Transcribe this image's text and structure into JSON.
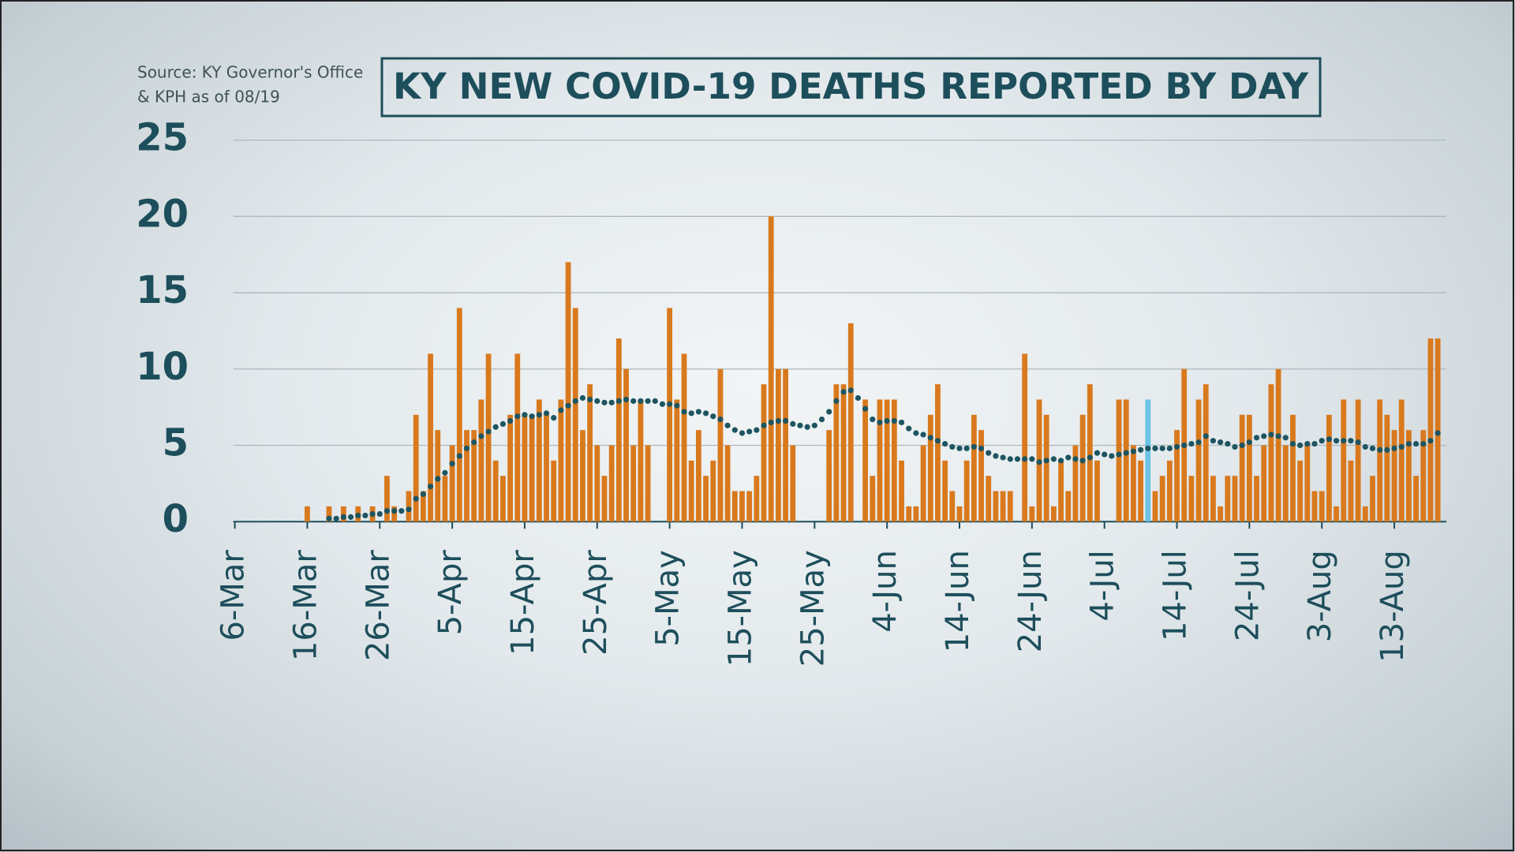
{
  "chart_data": {
    "type": "bar",
    "title": "KY NEW COVID-19 DEATHS REPORTED BY DAY",
    "source": [
      "Source: KY Governor's Office",
      "& KPH as of 08/19"
    ],
    "categories": [
      "6-Mar",
      null,
      null,
      null,
      null,
      null,
      null,
      null,
      null,
      null,
      "16-Mar",
      null,
      null,
      null,
      null,
      null,
      null,
      null,
      null,
      null,
      "26-Mar",
      null,
      null,
      null,
      null,
      null,
      null,
      null,
      null,
      null,
      "5-Apr",
      null,
      null,
      null,
      null,
      null,
      null,
      null,
      null,
      null,
      "15-Apr",
      null,
      null,
      null,
      null,
      null,
      null,
      null,
      null,
      null,
      "25-Apr",
      null,
      null,
      null,
      null,
      null,
      null,
      null,
      null,
      null,
      "5-May",
      null,
      null,
      null,
      null,
      null,
      null,
      null,
      null,
      null,
      "15-May",
      null,
      null,
      null,
      null,
      null,
      null,
      null,
      null,
      null,
      "25-May",
      null,
      null,
      null,
      null,
      null,
      null,
      null,
      null,
      null,
      "4-Jun",
      null,
      null,
      null,
      null,
      null,
      null,
      null,
      null,
      null,
      "14-Jun",
      null,
      null,
      null,
      null,
      null,
      null,
      null,
      null,
      null,
      "24-Jun",
      null,
      null,
      null,
      null,
      null,
      null,
      null,
      null,
      null,
      "4-Jul",
      null,
      null,
      null,
      null,
      null,
      null,
      null,
      null,
      null,
      "14-Jul",
      null,
      null,
      null,
      null,
      null,
      null,
      null,
      null,
      null,
      "24-Jul",
      null,
      null,
      null,
      null,
      null,
      null,
      null,
      null,
      null,
      "3-Aug",
      null,
      null,
      null,
      null,
      null,
      null,
      null,
      null,
      null,
      "13-Aug",
      null,
      null,
      null,
      null,
      null,
      null
    ],
    "series": [
      {
        "type": "bar",
        "color": "#d9791d",
        "highlight": {
          "index": 126,
          "color": "#6cc3e3"
        },
        "values": [
          0,
          0,
          0,
          0,
          0,
          0,
          0,
          0,
          0,
          0,
          1,
          0,
          0,
          1,
          0,
          1,
          0,
          1,
          0,
          1,
          0,
          3,
          1,
          0,
          2,
          7,
          2,
          11,
          6,
          3,
          5,
          14,
          6,
          6,
          8,
          11,
          4,
          3,
          7,
          11,
          7,
          7,
          8,
          7,
          4,
          8,
          17,
          14,
          6,
          9,
          5,
          3,
          5,
          12,
          10,
          5,
          8,
          5,
          0,
          0,
          14,
          8,
          11,
          4,
          6,
          3,
          4,
          10,
          5,
          2,
          2,
          2,
          3,
          9,
          20,
          10,
          10,
          5,
          0,
          0,
          0,
          0,
          6,
          9,
          9,
          13,
          0,
          8,
          3,
          8,
          8,
          8,
          4,
          1,
          1,
          5,
          7,
          9,
          4,
          2,
          1,
          4,
          7,
          6,
          3,
          2,
          2,
          2,
          0,
          11,
          1,
          8,
          7,
          1,
          4,
          2,
          5,
          7,
          9,
          4,
          0,
          0,
          8,
          8,
          5,
          4,
          8,
          2,
          3,
          4,
          6,
          10,
          3,
          8,
          9,
          3,
          1,
          3,
          3,
          7,
          7,
          3,
          5,
          9,
          10,
          5,
          7,
          4,
          5,
          2,
          2,
          7,
          1,
          8,
          4,
          8,
          1,
          3,
          8,
          7,
          6,
          8,
          6,
          3,
          6,
          12,
          12
        ]
      },
      {
        "type": "dots",
        "color": "#1d5561",
        "values": [
          null,
          null,
          null,
          null,
          null,
          null,
          null,
          null,
          null,
          null,
          null,
          null,
          null,
          0.2,
          0.2,
          0.3,
          0.3,
          0.4,
          0.4,
          0.5,
          0.5,
          0.7,
          0.7,
          0.7,
          0.8,
          1.5,
          1.8,
          2.3,
          2.8,
          3.2,
          3.8,
          4.3,
          4.8,
          5.2,
          5.6,
          5.9,
          6.2,
          6.4,
          6.6,
          6.9,
          7.0,
          6.9,
          7.0,
          7.1,
          6.8,
          7.3,
          7.6,
          7.9,
          8.1,
          8.0,
          7.9,
          7.8,
          7.8,
          7.9,
          8.0,
          7.9,
          7.9,
          7.9,
          7.9,
          7.7,
          7.7,
          7.6,
          7.2,
          7.1,
          7.2,
          7.1,
          6.9,
          6.7,
          6.3,
          6.0,
          5.8,
          5.9,
          6.0,
          6.3,
          6.5,
          6.6,
          6.6,
          6.4,
          6.3,
          6.2,
          6.3,
          6.7,
          7.2,
          7.9,
          8.5,
          8.6,
          8.1,
          7.4,
          6.7,
          6.5,
          6.6,
          6.6,
          6.5,
          6.1,
          5.8,
          5.7,
          5.5,
          5.3,
          5.1,
          4.9,
          4.8,
          4.8,
          4.9,
          4.8,
          4.5,
          4.3,
          4.2,
          4.1,
          4.1,
          4.1,
          4.1,
          3.9,
          4.0,
          4.1,
          4.0,
          4.2,
          4.1,
          4.0,
          4.2,
          4.5,
          4.4,
          4.3,
          4.4,
          4.5,
          4.6,
          4.7,
          4.8,
          4.8,
          4.8,
          4.8,
          4.9,
          5.0,
          5.1,
          5.2,
          5.6,
          5.3,
          5.2,
          5.1,
          4.9,
          5.0,
          5.2,
          5.5,
          5.6,
          5.7,
          5.6,
          5.5,
          5.1,
          5.0,
          5.1,
          5.1,
          5.3,
          5.4,
          5.3,
          5.3,
          5.3,
          5.2,
          4.9,
          4.8,
          4.7,
          4.7,
          4.8,
          4.9,
          5.1,
          5.1,
          5.1,
          5.3,
          5.8
        ]
      }
    ],
    "ylim": [
      0,
      25
    ],
    "yticks": [
      0,
      5,
      10,
      15,
      20,
      25
    ],
    "grid": true
  }
}
